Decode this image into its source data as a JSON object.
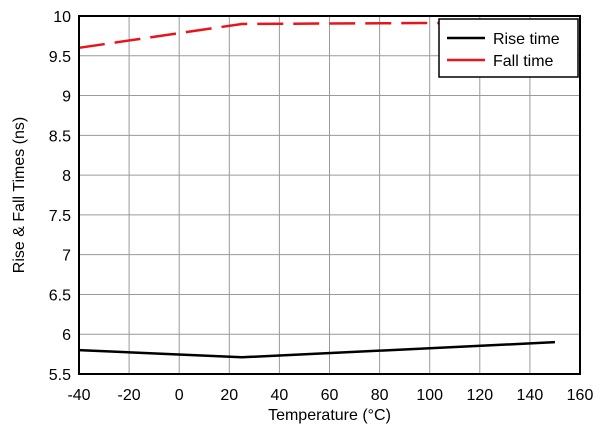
{
  "chart_data": {
    "type": "line",
    "title": "",
    "xlabel": "Temperature (°C)",
    "ylabel": "Rise & Fall Times (ns)",
    "xlim": [
      -40,
      160
    ],
    "ylim": [
      5.5,
      10
    ],
    "x_ticks": [
      -40,
      -20,
      0,
      20,
      40,
      60,
      80,
      100,
      120,
      140,
      160
    ],
    "y_ticks": [
      5.5,
      6,
      6.5,
      7,
      7.5,
      8,
      8.5,
      9,
      9.5,
      10
    ],
    "x_tick_labels": [
      "-40",
      "-20",
      "0",
      "20",
      "40",
      "60",
      "80",
      "100",
      "120",
      "140",
      "160"
    ],
    "y_tick_labels": [
      "5.5",
      "6",
      "6.5",
      "7",
      "7.5",
      "8",
      "8.5",
      "9",
      "9.5",
      "10"
    ],
    "grid": true,
    "legend_position": "top-right",
    "series": [
      {
        "name": "Rise time",
        "color": "#000000",
        "style": "solid",
        "x": [
          -40,
          25,
          150
        ],
        "y": [
          5.8,
          5.71,
          5.9
        ]
      },
      {
        "name": "Fall time",
        "color": "#e8141c",
        "style": "dashed",
        "x": [
          -40,
          25,
          150
        ],
        "y": [
          9.6,
          9.9,
          9.92
        ]
      }
    ]
  }
}
